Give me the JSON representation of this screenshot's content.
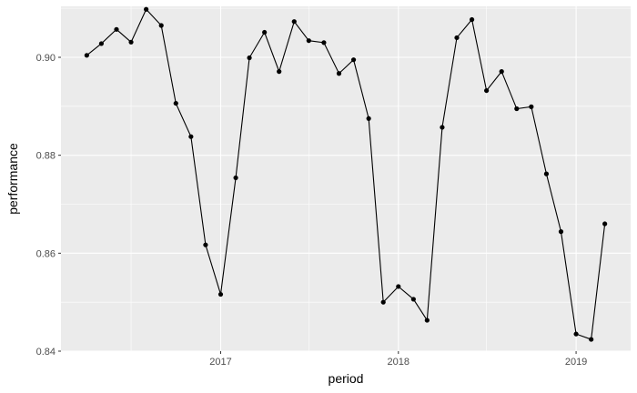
{
  "chart_data": {
    "type": "line",
    "title": "",
    "xlabel": "period",
    "ylabel": "performance",
    "x_ticks": [
      {
        "value": "2017-01-01",
        "label": "2017"
      },
      {
        "value": "2018-01-01",
        "label": "2018"
      },
      {
        "value": "2019-01-01",
        "label": "2019"
      }
    ],
    "y_ticks": [
      {
        "value": 0.84,
        "label": "0.84"
      },
      {
        "value": 0.86,
        "label": "0.86"
      },
      {
        "value": 0.88,
        "label": "0.88"
      },
      {
        "value": 0.9,
        "label": "0.90"
      }
    ],
    "ylim": [
      0.84,
      0.9104
    ],
    "xlim": [
      "2016-02-08",
      "2019-04-23"
    ],
    "grid": true,
    "legend": "none",
    "colors": {
      "panel": "#ebebeb",
      "grid": "#ffffff",
      "series": "#000000"
    },
    "series": [
      {
        "name": "",
        "points": [
          {
            "x": "2016-04-01",
            "y": 0.9004
          },
          {
            "x": "2016-05-01",
            "y": 0.9028
          },
          {
            "x": "2016-06-01",
            "y": 0.9057
          },
          {
            "x": "2016-07-01",
            "y": 0.9031
          },
          {
            "x": "2016-08-01",
            "y": 0.9098
          },
          {
            "x": "2016-09-01",
            "y": 0.9065
          },
          {
            "x": "2016-10-01",
            "y": 0.8906
          },
          {
            "x": "2016-11-01",
            "y": 0.8838
          },
          {
            "x": "2016-12-01",
            "y": 0.8617
          },
          {
            "x": "2017-01-01",
            "y": 0.8516
          },
          {
            "x": "2017-02-01",
            "y": 0.8754
          },
          {
            "x": "2017-03-01",
            "y": 0.8999
          },
          {
            "x": "2017-04-01",
            "y": 0.9051
          },
          {
            "x": "2017-05-01",
            "y": 0.8971
          },
          {
            "x": "2017-06-01",
            "y": 0.9073
          },
          {
            "x": "2017-07-01",
            "y": 0.9034
          },
          {
            "x": "2017-08-01",
            "y": 0.903
          },
          {
            "x": "2017-09-01",
            "y": 0.8967
          },
          {
            "x": "2017-10-01",
            "y": 0.8995
          },
          {
            "x": "2017-11-01",
            "y": 0.8875
          },
          {
            "x": "2017-12-01",
            "y": 0.85
          },
          {
            "x": "2018-01-01",
            "y": 0.8532
          },
          {
            "x": "2018-02-01",
            "y": 0.8506
          },
          {
            "x": "2018-03-01",
            "y": 0.8463
          },
          {
            "x": "2018-04-01",
            "y": 0.8857
          },
          {
            "x": "2018-05-01",
            "y": 0.904
          },
          {
            "x": "2018-06-01",
            "y": 0.9077
          },
          {
            "x": "2018-07-01",
            "y": 0.8932
          },
          {
            "x": "2018-08-01",
            "y": 0.8971
          },
          {
            "x": "2018-09-01",
            "y": 0.8895
          },
          {
            "x": "2018-10-01",
            "y": 0.8899
          },
          {
            "x": "2018-11-01",
            "y": 0.8762
          },
          {
            "x": "2018-12-01",
            "y": 0.8644
          },
          {
            "x": "2019-01-01",
            "y": 0.8435
          },
          {
            "x": "2019-02-01",
            "y": 0.8424
          },
          {
            "x": "2019-03-01",
            "y": 0.866
          }
        ]
      }
    ]
  }
}
